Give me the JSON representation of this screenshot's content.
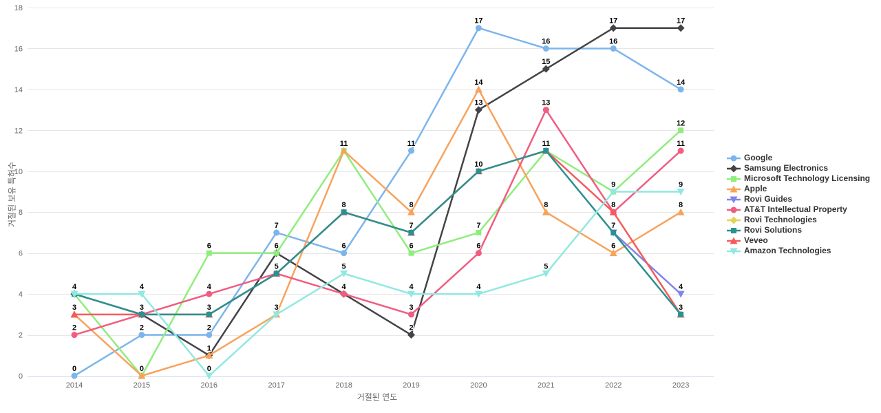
{
  "chart_data": {
    "type": "line",
    "title": "",
    "xlabel": "거절된 연도",
    "ylabel": "거절된 보유 특허수",
    "categories": [
      "2014",
      "2015",
      "2016",
      "2017",
      "2018",
      "2019",
      "2020",
      "2021",
      "2022",
      "2023"
    ],
    "ylim": [
      0,
      18
    ],
    "yticks": [
      0,
      2,
      4,
      6,
      8,
      10,
      12,
      14,
      16,
      18
    ],
    "grid": "horizontal",
    "legend_position": "right",
    "data_labels": true,
    "colors": {
      "gridline": "#e6e6e6",
      "axis_line": "#ccd6eb",
      "tick_text": "#666666",
      "legend_text": "#333333",
      "data_label_text": "#000000"
    },
    "series": [
      {
        "name": "Google",
        "color": "#7cb5ec",
        "marker": "circle",
        "values": [
          0,
          2,
          2,
          7,
          6,
          11,
          17,
          16,
          16,
          14
        ]
      },
      {
        "name": "Samsung Electronics",
        "color": "#434348",
        "marker": "diamond",
        "values": [
          4,
          3,
          1,
          6,
          4,
          2,
          13,
          15,
          17,
          17
        ]
      },
      {
        "name": "Microsoft Technology Licensing",
        "color": "#90ed7d",
        "marker": "square",
        "values": [
          4,
          0,
          6,
          6,
          11,
          6,
          7,
          11,
          9,
          12
        ]
      },
      {
        "name": "Apple",
        "color": "#f7a35c",
        "marker": "triangle",
        "values": [
          3,
          0,
          1,
          3,
          11,
          8,
          14,
          8,
          6,
          8
        ]
      },
      {
        "name": "Rovi Guides",
        "color": "#8085e9",
        "marker": "triangle-down",
        "values": [
          null,
          null,
          null,
          null,
          null,
          null,
          null,
          null,
          7,
          4
        ]
      },
      {
        "name": "AT&T Intellectual Property",
        "color": "#f15c80",
        "marker": "circle",
        "values": [
          2,
          3,
          4,
          5,
          4,
          3,
          6,
          13,
          8,
          11
        ]
      },
      {
        "name": "Rovi Technologies",
        "color": "#e4d354",
        "marker": "diamond",
        "values": [
          null,
          null,
          null,
          null,
          null,
          null,
          null,
          null,
          null,
          null
        ]
      },
      {
        "name": "Rovi Solutions",
        "color": "#2b908f",
        "marker": "square",
        "values": [
          4,
          3,
          3,
          5,
          8,
          7,
          10,
          11,
          7,
          3
        ]
      },
      {
        "name": "Veveo",
        "color": "#f45b5b",
        "marker": "triangle",
        "values": [
          3,
          3,
          3,
          5,
          8,
          7,
          10,
          11,
          8,
          3
        ]
      },
      {
        "name": "Amazon Technologies",
        "color": "#91e8e1",
        "marker": "triangle-down",
        "values": [
          4,
          4,
          0,
          3,
          5,
          4,
          4,
          5,
          9,
          9
        ]
      }
    ]
  }
}
